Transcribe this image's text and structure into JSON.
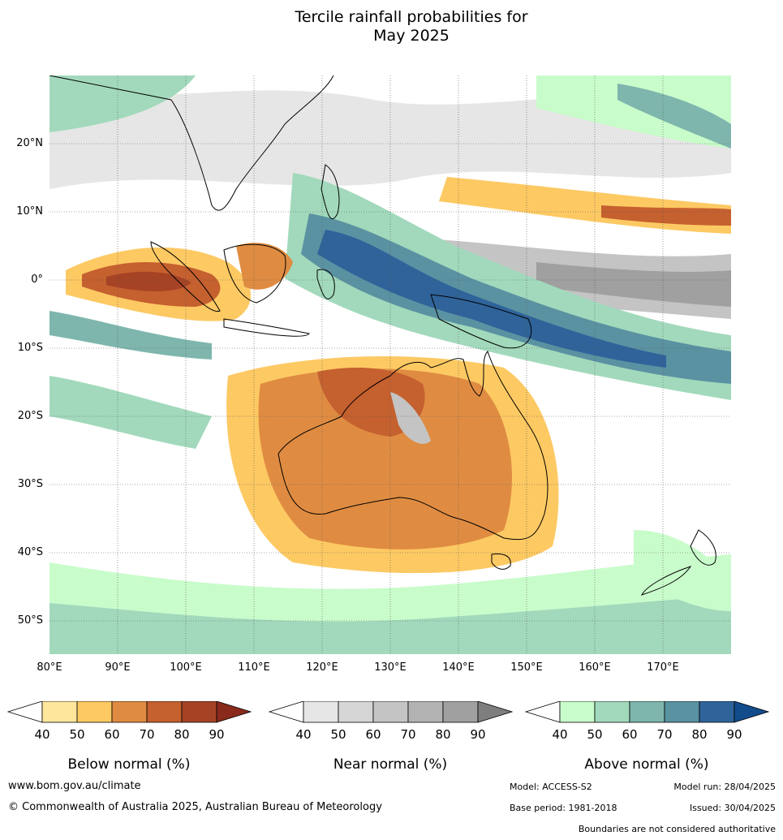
{
  "title_line1": "Tercile rainfall probabilities for",
  "title_line2": "May 2025",
  "map": {
    "lat_labels": [
      "20°N",
      "10°N",
      "0°",
      "10°S",
      "20°S",
      "30°S",
      "40°S",
      "50°S"
    ],
    "lon_labels": [
      "80°E",
      "90°E",
      "100°E",
      "110°E",
      "120°E",
      "130°E",
      "140°E",
      "150°E",
      "160°E",
      "170°E"
    ]
  },
  "colorbars": [
    {
      "title": "Below normal (%)",
      "ticks": [
        "40",
        "50",
        "60",
        "70",
        "80",
        "90"
      ],
      "colors": [
        "#ffffff",
        "#fee79d",
        "#fdc963",
        "#df8c42",
        "#c5602f",
        "#a64325",
        "#8a2a1c"
      ]
    },
    {
      "title": "Near normal (%)",
      "ticks": [
        "40",
        "50",
        "60",
        "70",
        "80",
        "90"
      ],
      "colors": [
        "#ffffff",
        "#e6e6e6",
        "#d5d5d5",
        "#c4c4c4",
        "#b3b3b3",
        "#a0a0a0",
        "#7e7e7e"
      ]
    },
    {
      "title": "Above normal (%)",
      "ticks": [
        "40",
        "50",
        "60",
        "70",
        "80",
        "90"
      ],
      "colors": [
        "#ffffff",
        "#c9fccb",
        "#a2d9bc",
        "#7eb6ad",
        "#5b92a2",
        "#2f639a",
        "#134c8b"
      ]
    }
  ],
  "footer": {
    "website": "www.bom.gov.au/climate",
    "copyright": "© Commonwealth of Australia 2025, Australian Bureau of Meteorology",
    "model": "Model: ACCESS-S2",
    "model_run": "Model run: 28/04/2025",
    "base_period": "Base period: 1981-2018",
    "issued": "Issued: 30/04/2025",
    "disclaimer": "Boundaries are not considered authoritative"
  }
}
